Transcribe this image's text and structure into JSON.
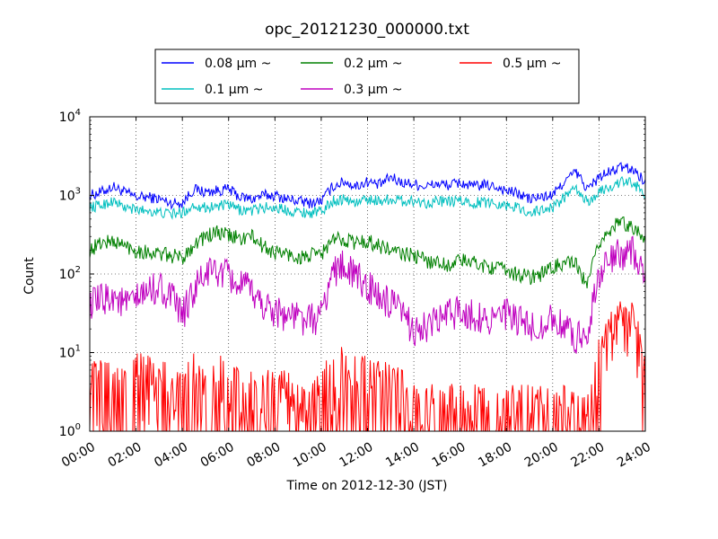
{
  "chart_data": {
    "type": "line",
    "title": "opc_20121230_000000.txt",
    "xlabel": "Time on 2012-12-30 (JST)",
    "ylabel": "Count",
    "x_unit": "hour of day (JST)",
    "xlim": [
      0,
      24
    ],
    "ylim": [
      1,
      10000
    ],
    "yscale": "log",
    "grid": true,
    "legend_position": "top-center, above plot, 3 columns",
    "x_tick_labels": [
      "00:00",
      "02:00",
      "04:00",
      "06:00",
      "08:00",
      "10:00",
      "12:00",
      "14:00",
      "16:00",
      "18:00",
      "20:00",
      "22:00",
      "24:00"
    ],
    "y_tick_labels": [
      {
        "base": "10",
        "exp": "0"
      },
      {
        "base": "10",
        "exp": "1"
      },
      {
        "base": "10",
        "exp": "2"
      },
      {
        "base": "10",
        "exp": "3"
      },
      {
        "base": "10",
        "exp": "4"
      }
    ],
    "series": [
      {
        "name": "0.08 μm ~",
        "color": "#0000ff",
        "x": [
          0,
          0.5,
          1,
          1.5,
          2,
          2.5,
          3,
          3.5,
          4,
          4.5,
          5,
          5.5,
          6,
          6.5,
          7,
          7.5,
          8,
          8.5,
          9,
          9.5,
          10,
          10.5,
          11,
          11.5,
          12,
          12.5,
          13,
          13.5,
          14,
          14.5,
          15,
          15.5,
          16,
          16.5,
          17,
          17.5,
          18,
          18.5,
          19,
          19.5,
          20,
          20.5,
          21,
          21.5,
          22,
          22.5,
          23,
          23.5,
          24
        ],
        "y": [
          1000,
          1100,
          1300,
          1100,
          950,
          950,
          900,
          800,
          800,
          1200,
          1100,
          1150,
          1200,
          950,
          900,
          1000,
          1000,
          900,
          850,
          800,
          850,
          1300,
          1500,
          1300,
          1500,
          1350,
          1700,
          1450,
          1400,
          1300,
          1400,
          1350,
          1450,
          1300,
          1350,
          1300,
          1150,
          1050,
          900,
          950,
          1000,
          1500,
          2000,
          1200,
          1700,
          2000,
          2300,
          2100,
          1500
        ]
      },
      {
        "name": "0.1 μm ~",
        "color": "#00bfbf",
        "x": [
          0,
          0.5,
          1,
          1.5,
          2,
          2.5,
          3,
          3.5,
          4,
          4.5,
          5,
          5.5,
          6,
          6.5,
          7,
          7.5,
          8,
          8.5,
          9,
          9.5,
          10,
          10.5,
          11,
          11.5,
          12,
          12.5,
          13,
          13.5,
          14,
          14.5,
          15,
          15.5,
          16,
          16.5,
          17,
          17.5,
          18,
          18.5,
          19,
          19.5,
          20,
          20.5,
          21,
          21.5,
          22,
          22.5,
          23,
          23.5,
          24
        ],
        "y": [
          700,
          750,
          850,
          700,
          650,
          650,
          600,
          580,
          600,
          750,
          700,
          730,
          750,
          650,
          640,
          700,
          700,
          650,
          620,
          600,
          620,
          850,
          900,
          800,
          900,
          850,
          900,
          850,
          850,
          800,
          850,
          820,
          850,
          800,
          820,
          800,
          750,
          700,
          600,
          650,
          700,
          950,
          1200,
          800,
          1100,
          1300,
          1500,
          1400,
          1050
        ]
      },
      {
        "name": "0.2 μm ~",
        "color": "#008000",
        "x": [
          0,
          0.5,
          1,
          1.5,
          2,
          2.5,
          3,
          3.5,
          4,
          4.5,
          5,
          5.5,
          6,
          6.5,
          7,
          7.5,
          8,
          8.5,
          9,
          9.5,
          10,
          10.5,
          11,
          11.5,
          12,
          12.5,
          13,
          13.5,
          14,
          14.5,
          15,
          15.5,
          16,
          16.5,
          17,
          17.5,
          18,
          18.5,
          19,
          19.5,
          20,
          20.5,
          21,
          21.5,
          22,
          22.5,
          23,
          23.5,
          24
        ],
        "y": [
          200,
          250,
          260,
          230,
          200,
          190,
          180,
          170,
          160,
          240,
          300,
          330,
          310,
          280,
          300,
          220,
          190,
          180,
          160,
          170,
          180,
          270,
          280,
          250,
          260,
          230,
          200,
          180,
          170,
          150,
          140,
          130,
          150,
          140,
          130,
          120,
          110,
          100,
          90,
          100,
          120,
          140,
          130,
          70,
          250,
          380,
          450,
          400,
          260
        ]
      },
      {
        "name": "0.3 μm ~",
        "color": "#bf00bf",
        "x": [
          0,
          0.5,
          1,
          1.5,
          2,
          2.5,
          3,
          3.5,
          4,
          4.5,
          5,
          5.5,
          6,
          6.5,
          7,
          7.5,
          8,
          8.5,
          9,
          9.5,
          10,
          10.5,
          11,
          11.5,
          12,
          12.5,
          13,
          13.5,
          14,
          14.5,
          15,
          15.5,
          16,
          16.5,
          17,
          17.5,
          18,
          18.5,
          19,
          19.5,
          20,
          20.5,
          21,
          21.5,
          22,
          22.5,
          23,
          23.5,
          24
        ],
        "y": [
          40,
          45,
          55,
          40,
          45,
          60,
          70,
          50,
          30,
          60,
          100,
          110,
          90,
          70,
          60,
          40,
          35,
          30,
          28,
          25,
          30,
          110,
          130,
          90,
          70,
          50,
          40,
          30,
          20,
          20,
          25,
          30,
          35,
          30,
          28,
          27,
          30,
          25,
          20,
          22,
          28,
          20,
          15,
          20,
          100,
          150,
          180,
          200,
          80
        ]
      },
      {
        "name": "0.5 μm ~",
        "color": "#ff0000",
        "x": [
          0,
          0.5,
          1,
          1.5,
          2,
          2.5,
          3,
          3.5,
          4,
          4.5,
          5,
          5.5,
          6,
          6.5,
          7,
          7.5,
          8,
          8.5,
          9,
          9.5,
          10,
          10.5,
          11,
          11.5,
          12,
          12.5,
          13,
          13.5,
          14,
          14.5,
          15,
          15.5,
          16,
          16.5,
          17,
          17.5,
          18,
          18.5,
          19,
          19.5,
          20,
          20.5,
          21,
          21.5,
          22,
          22.5,
          23,
          23.5,
          24
        ],
        "y": [
          4,
          4,
          4,
          4,
          5,
          5,
          5,
          3,
          3,
          5,
          5,
          5,
          4,
          3,
          3,
          3,
          3,
          3,
          2,
          2,
          3,
          6,
          6,
          5,
          5,
          4,
          4,
          3,
          2,
          2,
          2,
          2,
          2,
          2,
          2,
          2,
          2,
          2,
          2,
          2,
          2,
          2,
          1.5,
          1.5,
          8,
          18,
          25,
          30,
          4
        ]
      }
    ]
  }
}
